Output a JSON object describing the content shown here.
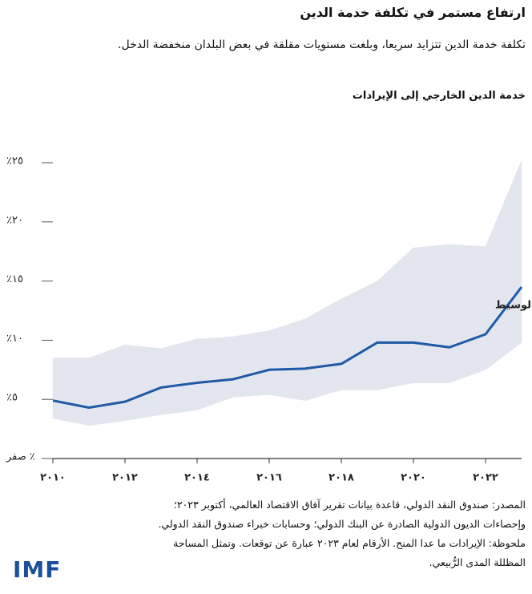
{
  "chart_data": {
    "type": "line",
    "title": "ارتفاع مستمر في تكلفة خدمة الدين",
    "subtitle": "تكلفة خدمة الدين تتزايد سريعا، وبلغت مستويات مقلقة في بعض البلدان منخفضة الدخل.",
    "chart_title": "خدمة الدين الخارجي إلى الإيرادات",
    "x": [
      2010,
      2011,
      2012,
      2013,
      2014,
      2015,
      2016,
      2017,
      2018,
      2019,
      2020,
      2021,
      2022,
      2023
    ],
    "xlim": [
      2010,
      2023
    ],
    "xticks": [
      {
        "value": 2010,
        "label": "٢٠١٠"
      },
      {
        "value": 2012,
        "label": "٢٠١٢"
      },
      {
        "value": 2014,
        "label": "٢٠١٤"
      },
      {
        "value": 2016,
        "label": "٢٠١٦"
      },
      {
        "value": 2018,
        "label": "٢٠١٨"
      },
      {
        "value": 2020,
        "label": "٢٠٢٠"
      },
      {
        "value": 2022,
        "label": "٢٠٢٢"
      }
    ],
    "ylim": [
      0,
      26
    ],
    "yticks": [
      {
        "value": 0,
        "label": "صفر ٪"
      },
      {
        "value": 5,
        "label": "٪٥"
      },
      {
        "value": 10,
        "label": "٪١٠"
      },
      {
        "value": 15,
        "label": "٪١٥"
      },
      {
        "value": 20,
        "label": "٪٢٠"
      },
      {
        "value": 25,
        "label": "٪٢٥"
      }
    ],
    "series": [
      {
        "name": "الوسيط",
        "color": "#1f5aa6",
        "values": [
          4.9,
          4.3,
          4.8,
          6.0,
          6.4,
          6.7,
          7.5,
          7.6,
          8.0,
          9.8,
          9.8,
          9.4,
          10.5,
          14.5
        ]
      }
    ],
    "band": {
      "color": "#e3e6ee",
      "upper": [
        8.5,
        8.5,
        9.6,
        9.3,
        10.1,
        10.3,
        10.8,
        11.8,
        13.5,
        15.0,
        17.8,
        18.1,
        17.9,
        25.2
      ],
      "lower": [
        3.4,
        2.8,
        3.2,
        3.7,
        4.1,
        5.2,
        5.4,
        4.9,
        5.8,
        5.8,
        6.4,
        6.4,
        7.5,
        9.8
      ]
    },
    "notes": [
      "المصدر: صندوق النقد الدولي، قاعدة بيانات تقرير آفاق الاقتصاد العالمي، أكتوبر ٢٠٢٣؛",
      "وإحصاءات الديون الدولية الصادرة عن البنك الدولي؛ وحسابات خبراء صندوق النقد الدولي.",
      "ملحوظة: الإيرادات ما عدا المنح. الأرقام لعام ٢٠٢٣ عبارة عن توقعات. وتمثل المساحة",
      "المظللة المدى الرُّبيعي."
    ],
    "logo": "IMF"
  }
}
